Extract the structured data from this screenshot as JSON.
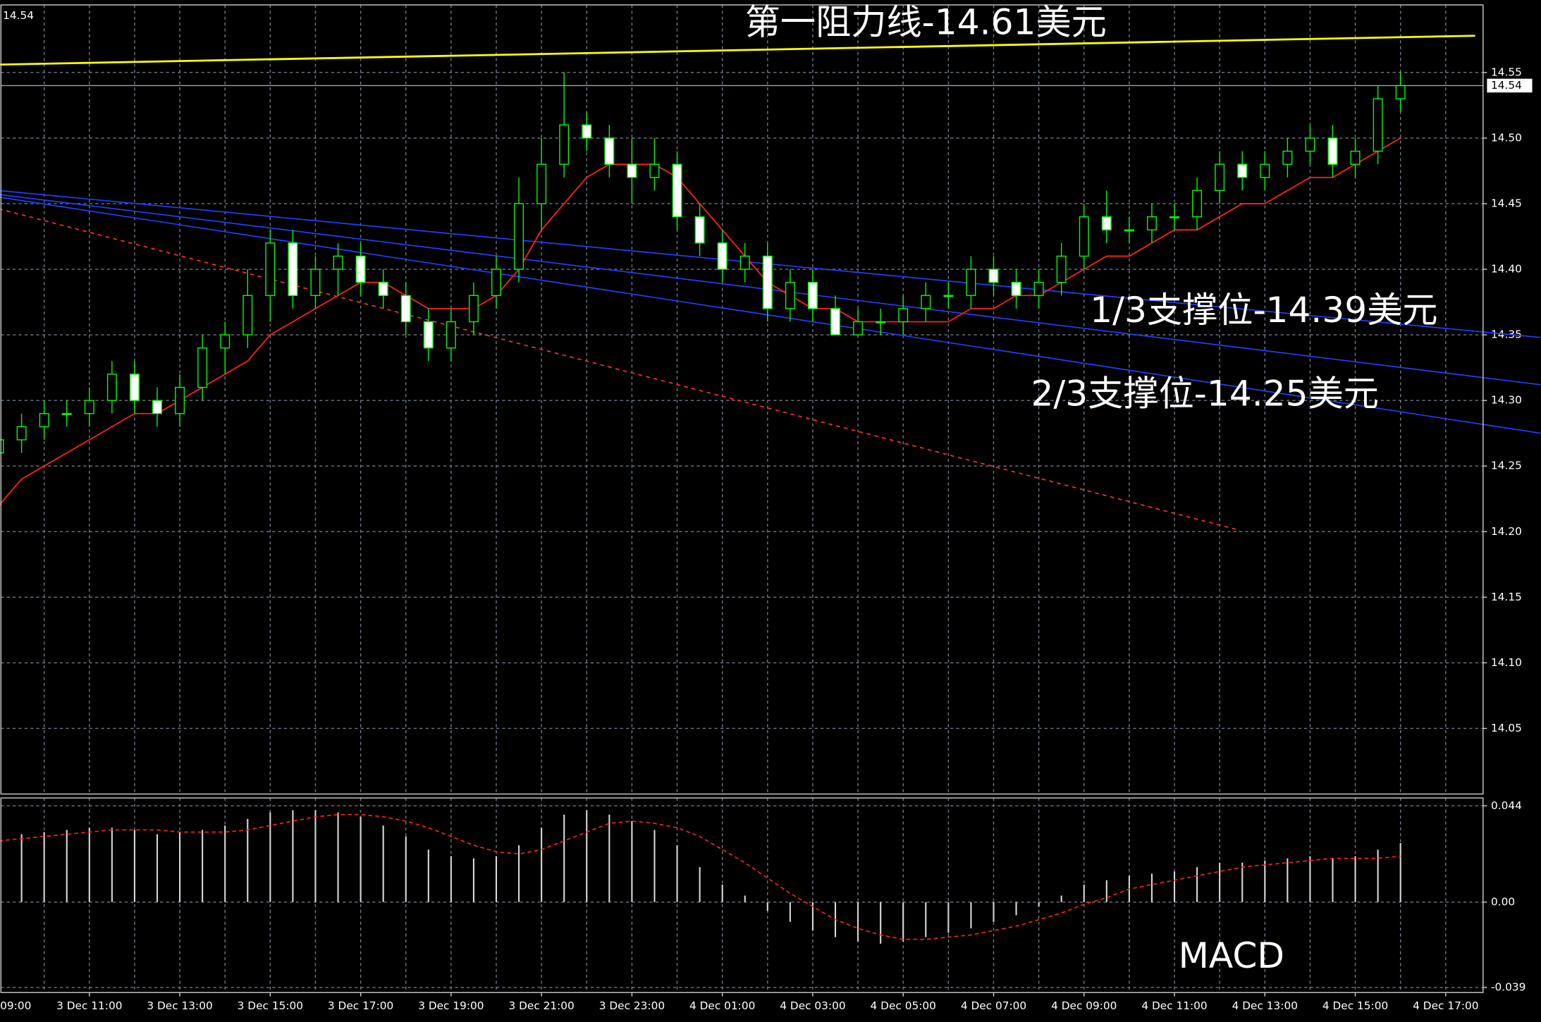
{
  "chart_data": {
    "type": "candlestick",
    "categories": [
      "09:00",
      null,
      null,
      null,
      "3 Dec 11:00",
      null,
      null,
      null,
      "3 Dec 13:00",
      null,
      null,
      null,
      "3 Dec 15:00",
      null,
      null,
      null,
      "3 Dec 17:00",
      null,
      null,
      null,
      "3 Dec 19:00",
      null,
      null,
      null,
      "3 Dec 21:00",
      null,
      null,
      null,
      "3 Dec 23:00",
      null,
      null,
      null,
      "4 Dec 01:00",
      null,
      null,
      null,
      "4 Dec 03:00",
      null,
      null,
      null,
      "4 Dec 05:00",
      null,
      null,
      null,
      "4 Dec 07:00",
      null,
      null,
      null,
      "4 Dec 09:00",
      null,
      null,
      null,
      "4 Dec 11:00",
      null,
      null,
      null,
      "4 Dec 13:00",
      null,
      null,
      null,
      "4 Dec 15:00",
      null,
      null,
      null,
      "4 Dec 17:00"
    ],
    "open": [
      14.26,
      14.27,
      14.28,
      14.29,
      14.29,
      14.3,
      14.32,
      14.3,
      14.29,
      14.31,
      14.34,
      14.35,
      14.38,
      14.42,
      14.38,
      14.4,
      14.41,
      14.39,
      14.38,
      14.36,
      14.34,
      14.36,
      14.38,
      14.4,
      14.45,
      14.48,
      14.51,
      14.5,
      14.48,
      14.47,
      14.48,
      14.44,
      14.42,
      14.4,
      14.41,
      14.37,
      14.39,
      14.37,
      14.35,
      14.36,
      14.36,
      14.37,
      14.38,
      14.38,
      14.4,
      14.39,
      14.38,
      14.39,
      14.41,
      14.44,
      14.43,
      14.43,
      14.44,
      14.44,
      14.46,
      14.48,
      14.47,
      14.48,
      14.49,
      14.5,
      14.48,
      14.49,
      14.53,
      null,
      null
    ],
    "high": [
      14.28,
      14.29,
      14.3,
      14.3,
      14.31,
      14.33,
      14.33,
      14.31,
      14.32,
      14.35,
      14.36,
      14.4,
      14.43,
      14.43,
      14.41,
      14.42,
      14.42,
      14.4,
      14.39,
      14.37,
      14.37,
      14.39,
      14.41,
      14.47,
      14.5,
      14.55,
      14.52,
      14.51,
      14.5,
      14.5,
      14.49,
      14.45,
      14.43,
      14.42,
      14.42,
      14.4,
      14.4,
      14.38,
      14.37,
      14.37,
      14.38,
      14.39,
      14.39,
      14.41,
      14.41,
      14.4,
      14.4,
      14.42,
      14.45,
      14.46,
      14.44,
      14.45,
      14.45,
      14.47,
      14.49,
      14.49,
      14.49,
      14.5,
      14.51,
      14.51,
      14.5,
      14.54,
      14.55,
      null,
      null
    ],
    "low": [
      14.25,
      14.26,
      14.27,
      14.28,
      14.28,
      14.29,
      14.29,
      14.28,
      14.28,
      14.3,
      14.32,
      14.34,
      14.36,
      14.37,
      14.37,
      14.38,
      14.38,
      14.37,
      14.35,
      14.33,
      14.33,
      14.35,
      14.37,
      14.39,
      14.43,
      14.47,
      14.49,
      14.47,
      14.45,
      14.46,
      14.43,
      14.41,
      14.39,
      14.39,
      14.36,
      14.36,
      14.36,
      14.35,
      14.35,
      14.35,
      14.35,
      14.36,
      14.37,
      14.37,
      14.38,
      14.37,
      14.37,
      14.38,
      14.4,
      14.42,
      14.42,
      14.42,
      14.43,
      14.43,
      14.45,
      14.46,
      14.46,
      14.47,
      14.48,
      14.47,
      14.47,
      14.48,
      14.52,
      null,
      null
    ],
    "close": [
      14.27,
      14.28,
      14.29,
      14.29,
      14.3,
      14.32,
      14.3,
      14.29,
      14.31,
      14.34,
      14.35,
      14.38,
      14.42,
      14.38,
      14.4,
      14.41,
      14.39,
      14.38,
      14.36,
      14.34,
      14.36,
      14.38,
      14.4,
      14.45,
      14.48,
      14.51,
      14.5,
      14.48,
      14.47,
      14.48,
      14.44,
      14.42,
      14.4,
      14.41,
      14.37,
      14.39,
      14.37,
      14.35,
      14.36,
      14.36,
      14.37,
      14.38,
      14.38,
      14.4,
      14.39,
      14.38,
      14.39,
      14.41,
      14.44,
      14.43,
      14.43,
      14.44,
      14.44,
      14.46,
      14.48,
      14.47,
      14.48,
      14.49,
      14.5,
      14.48,
      14.49,
      14.53,
      14.54,
      null,
      null
    ],
    "up_color": "#000000",
    "down_color": "#ffffff",
    "wick_color": "#00ff00",
    "ma": {
      "color": "#ff2020",
      "values": [
        14.22,
        14.24,
        14.25,
        14.26,
        14.27,
        14.28,
        14.29,
        14.29,
        14.3,
        14.31,
        14.32,
        14.33,
        14.35,
        14.36,
        14.37,
        14.38,
        14.39,
        14.39,
        14.38,
        14.37,
        14.37,
        14.37,
        14.38,
        14.4,
        14.43,
        14.45,
        14.47,
        14.48,
        14.48,
        14.48,
        14.47,
        14.45,
        14.43,
        14.41,
        14.39,
        14.38,
        14.37,
        14.37,
        14.36,
        14.36,
        14.36,
        14.36,
        14.36,
        14.37,
        14.37,
        14.38,
        14.38,
        14.39,
        14.4,
        14.41,
        14.41,
        14.42,
        14.43,
        14.43,
        14.44,
        14.45,
        14.45,
        14.46,
        14.47,
        14.47,
        14.48,
        14.49,
        14.5,
        null,
        null
      ]
    },
    "lines": [
      {
        "color": "#ffff00",
        "dash": false,
        "x": [
          0,
          65.3
        ],
        "values": [
          14.556,
          14.578
        ]
      },
      {
        "color": "#ff3030",
        "dash": true,
        "x": [
          0,
          54.9
        ],
        "values": [
          14.446,
          14.201
        ]
      },
      {
        "color": "#2040ff",
        "dash": false,
        "x": [
          0,
          68.2
        ],
        "values": [
          14.46,
          14.348
        ]
      },
      {
        "color": "#2040ff",
        "dash": false,
        "x": [
          0,
          68.2
        ],
        "values": [
          14.457,
          14.312
        ]
      },
      {
        "color": "#2040ff",
        "dash": false,
        "x": [
          0,
          68.2
        ],
        "values": [
          14.455,
          14.275
        ]
      }
    ],
    "last_price": 14.54,
    "annotations": [
      "第一阻力线-14.61美元",
      "1/3支撑位-14.39美元",
      "2/3支撑位-14.25美元"
    ],
    "ylim": [
      14.0,
      14.6015
    ],
    "yticks": [
      14.05,
      {
        "value": 14.1,
        "label": "14.10"
      },
      14.15,
      {
        "value": 14.2,
        "label": "14.20"
      },
      14.25,
      {
        "value": 14.3,
        "label": "14.30"
      },
      14.35,
      {
        "value": 14.4,
        "label": "14.40"
      },
      14.45,
      {
        "value": 14.5,
        "label": "14.50"
      },
      14.55
    ],
    "grid": true,
    "macd": {
      "label": "MACD",
      "ylim": [
        -0.0413,
        0.0476
      ],
      "yticks": [
        0.044,
        {
          "value": 0,
          "label": "0.00"
        },
        -0.039
      ],
      "hist_color": "#d8d8d8",
      "signal_color": "#ff2020",
      "histogram": [
        0.03,
        0.031,
        0.032,
        0.033,
        0.034,
        0.034,
        0.033,
        0.031,
        0.032,
        0.033,
        0.035,
        0.038,
        0.041,
        0.042,
        0.042,
        0.041,
        0.039,
        0.035,
        0.03,
        0.024,
        0.021,
        0.02,
        0.021,
        0.026,
        0.034,
        0.04,
        0.042,
        0.04,
        0.037,
        0.033,
        0.026,
        0.016,
        0.008,
        0.003,
        -0.004,
        -0.009,
        -0.013,
        -0.016,
        -0.018,
        -0.019,
        -0.018,
        -0.016,
        -0.014,
        -0.012,
        -0.009,
        -0.006,
        -0.002,
        0.003,
        0.008,
        0.01,
        0.012,
        0.013,
        0.014,
        0.016,
        0.018,
        0.018,
        0.019,
        0.02,
        0.021,
        0.02,
        0.021,
        0.024,
        0.027,
        null,
        null
      ],
      "signal": [
        0.028,
        0.029,
        0.03,
        0.031,
        0.032,
        0.033,
        0.033,
        0.033,
        0.032,
        0.032,
        0.032,
        0.033,
        0.035,
        0.037,
        0.039,
        0.04,
        0.04,
        0.039,
        0.037,
        0.034,
        0.03,
        0.026,
        0.023,
        0.022,
        0.024,
        0.028,
        0.032,
        0.036,
        0.037,
        0.036,
        0.034,
        0.03,
        0.024,
        0.018,
        0.011,
        0.004,
        -0.002,
        -0.008,
        -0.012,
        -0.015,
        -0.017,
        -0.017,
        -0.016,
        -0.015,
        -0.013,
        -0.011,
        -0.008,
        -0.005,
        -0.001,
        0.002,
        0.006,
        0.008,
        0.01,
        0.012,
        0.014,
        0.016,
        0.017,
        0.018,
        0.019,
        0.02,
        0.02,
        0.02,
        0.021,
        null,
        null
      ]
    }
  }
}
